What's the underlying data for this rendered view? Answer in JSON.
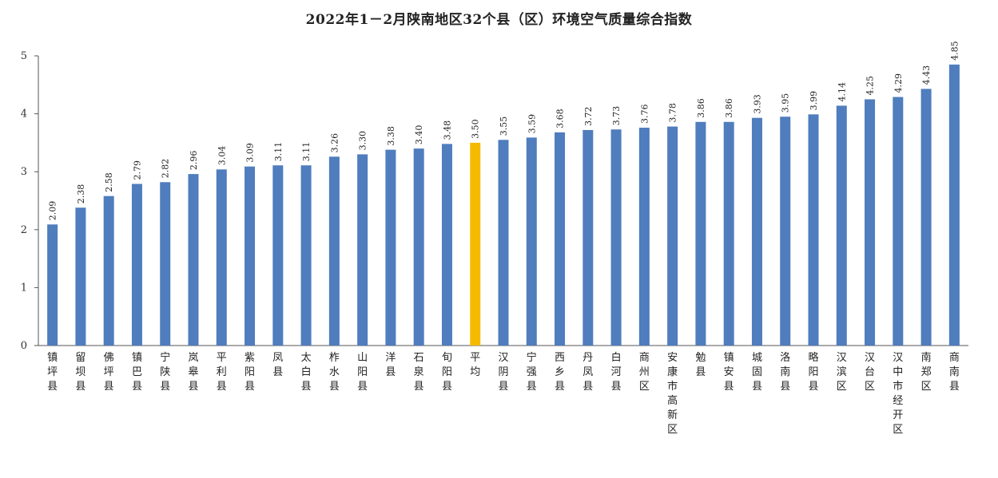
{
  "chart_data": {
    "type": "bar",
    "title": "2022年1－2月陕南地区32个县（区）环境空气质量综合指数",
    "xlabel": "",
    "ylabel": "",
    "ylim": [
      0,
      5
    ],
    "yticks": [
      "0",
      "1",
      "2",
      "3",
      "4",
      "5"
    ],
    "grid": false,
    "legend": "none",
    "bar_color": "#4F7DBD",
    "highlight_color": "#F5BA00",
    "highlight_category": "平均",
    "categories": [
      "镇坪县",
      "留坝县",
      "佛坪县",
      "镇巴县",
      "宁陕县",
      "岚皋县",
      "平利县",
      "紫阳县",
      "凤县",
      "太白县",
      "柞水县",
      "山阳县",
      "洋县",
      "石泉县",
      "旬阳县",
      "平均",
      "汉阴县",
      "宁强县",
      "西乡县",
      "丹凤县",
      "白河县",
      "商州区",
      "安康市高新区",
      "勉县",
      "镇安县",
      "城固县",
      "洛南县",
      "略阳县",
      "汉滨区",
      "汉台区",
      "汉中市经开区",
      "南郑区",
      "商南县"
    ],
    "values": [
      2.09,
      2.38,
      2.58,
      2.79,
      2.82,
      2.96,
      3.04,
      3.09,
      3.11,
      3.11,
      3.26,
      3.3,
      3.38,
      3.4,
      3.48,
      3.5,
      3.55,
      3.59,
      3.68,
      3.72,
      3.73,
      3.76,
      3.78,
      3.86,
      3.86,
      3.93,
      3.95,
      3.99,
      4.14,
      4.25,
      4.29,
      4.43,
      4.85
    ],
    "value_labels": [
      "2.09",
      "2.38",
      "2.58",
      "2.79",
      "2.82",
      "2.96",
      "3.04",
      "3.09",
      "3.11",
      "3.11",
      "3.26",
      "3.30",
      "3.38",
      "3.40",
      "3.48",
      "3.50",
      "3.55",
      "3.59",
      "3.68",
      "3.72",
      "3.73",
      "3.76",
      "3.78",
      "3.86",
      "3.86",
      "3.93",
      "3.95",
      "3.99",
      "4.14",
      "4.25",
      "4.29",
      "4.43",
      "4.85"
    ]
  }
}
